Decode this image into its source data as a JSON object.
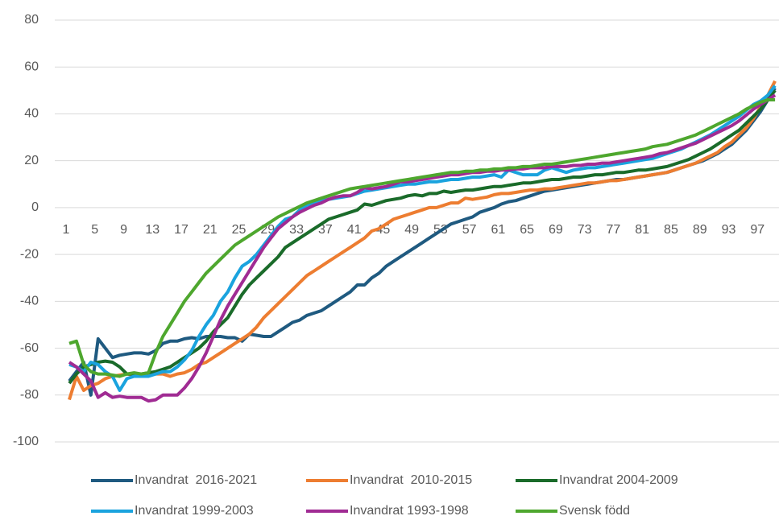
{
  "chart_data": {
    "type": "line",
    "categories": [
      "1",
      null,
      null,
      null,
      "5",
      null,
      null,
      null,
      "9",
      null,
      null,
      null,
      "13",
      null,
      null,
      null,
      "17",
      null,
      null,
      null,
      "21",
      null,
      null,
      null,
      "25",
      null,
      null,
      null,
      "29",
      null,
      null,
      null,
      "33",
      null,
      null,
      null,
      "37",
      null,
      null,
      null,
      "41",
      null,
      null,
      null,
      "45",
      null,
      null,
      null,
      "49",
      null,
      null,
      null,
      "53",
      null,
      null,
      null,
      "57",
      null,
      null,
      null,
      "61",
      null,
      null,
      null,
      "65",
      null,
      null,
      null,
      "69",
      null,
      null,
      null,
      "73",
      null,
      null,
      null,
      "77",
      null,
      null,
      null,
      "81",
      null,
      null,
      null,
      "85",
      null,
      null,
      null,
      "89",
      null,
      null,
      null,
      "93",
      null,
      null,
      null,
      "97",
      null,
      null
    ],
    "ylim": [
      -100,
      80
    ],
    "yticks": [
      -100,
      -80,
      -60,
      -40,
      -20,
      0,
      20,
      40,
      60,
      80
    ],
    "grid": true,
    "series": [
      {
        "name": "Invandrat  2016-2021",
        "color": "#1f5a80",
        "values": [
          -74,
          -70,
          -66,
          -80,
          -56,
          -60,
          -64,
          -63,
          -62.5,
          -62,
          -62,
          -62.5,
          -61,
          -58,
          -57,
          -57,
          -56,
          -55.5,
          -56,
          -55,
          -55,
          -55,
          -55.5,
          -55.5,
          -57,
          -54,
          -54.5,
          -55,
          -55,
          -53,
          -51,
          -49,
          -48,
          -46,
          -45,
          -44,
          -42,
          -40,
          -38,
          -36,
          -33,
          -33,
          -30,
          -28,
          -25,
          -23,
          -21,
          -19,
          -17,
          -15,
          -13,
          -11,
          -9,
          -7,
          -6,
          -5,
          -4,
          -2,
          -1,
          0,
          1.5,
          2.5,
          3,
          4,
          5,
          6,
          7,
          7.5,
          8,
          8.5,
          9,
          9.5,
          10,
          10.5,
          11,
          11.5,
          12,
          12,
          12.5,
          13,
          13.5,
          14,
          14.5,
          15,
          16,
          17,
          18,
          19,
          20,
          21.5,
          23,
          25,
          27,
          30,
          33,
          37,
          41,
          46,
          51
        ]
      },
      {
        "name": "Invandrat  2010-2015",
        "color": "#ed7d31",
        "values": [
          -82,
          -72,
          -78,
          -76,
          -75,
          -73,
          -72,
          -71.5,
          -71,
          -71.5,
          -71,
          -71.5,
          -71,
          -71,
          -72,
          -71,
          -70.5,
          -69,
          -67,
          -66,
          -64,
          -62,
          -60,
          -58,
          -56,
          -54,
          -51,
          -47,
          -44,
          -41,
          -38,
          -35,
          -32,
          -29,
          -27,
          -25,
          -23,
          -21,
          -19,
          -17,
          -15,
          -13,
          -10,
          -9,
          -7,
          -5,
          -4,
          -3,
          -2,
          -1,
          0,
          0,
          1,
          2,
          2,
          4,
          3.5,
          4,
          4.5,
          5.5,
          6,
          6,
          6.5,
          7,
          7.5,
          7.5,
          8,
          8,
          8.5,
          9,
          9.5,
          10,
          10.5,
          10.5,
          11,
          11.5,
          11.5,
          12,
          12.5,
          13,
          13.5,
          14,
          14.5,
          15,
          16,
          17,
          18,
          19,
          20.5,
          22,
          23.5,
          26,
          28,
          31,
          34,
          38,
          43,
          48,
          54
        ]
      },
      {
        "name": "Invandrat 2004-2009",
        "color": "#1a6b2a",
        "values": [
          -75,
          -71,
          -68,
          -67,
          -66,
          -65.5,
          -66,
          -68,
          -71,
          -71,
          -71,
          -70.5,
          -70,
          -69,
          -68,
          -66,
          -64,
          -62,
          -60,
          -57,
          -53,
          -50,
          -47,
          -42,
          -37,
          -33,
          -30,
          -27,
          -24,
          -21,
          -17,
          -15,
          -13,
          -11,
          -9,
          -7,
          -5,
          -4,
          -3,
          -2,
          -1,
          1.5,
          1,
          2,
          3,
          3.5,
          4,
          5,
          5.5,
          5,
          6,
          6,
          7,
          6.5,
          7,
          7.5,
          7.5,
          8,
          8.5,
          9,
          9,
          9.5,
          10,
          10.5,
          10.5,
          11,
          11.5,
          12,
          12,
          12.5,
          13,
          13,
          13.5,
          14,
          14,
          14.5,
          15,
          15,
          15.5,
          16,
          16,
          16.5,
          17,
          17.5,
          18.5,
          19.5,
          20.5,
          22,
          23.5,
          25,
          27,
          29,
          31,
          33,
          36,
          39,
          42,
          46,
          50
        ]
      },
      {
        "name": "Invandrat 1999-2003",
        "color": "#1aa3de",
        "values": [
          -67,
          -68,
          -70,
          -66,
          -67,
          -70,
          -72,
          -78,
          -73,
          -72,
          -72,
          -72,
          -71,
          -70,
          -70,
          -68,
          -65,
          -61,
          -55,
          -50,
          -46,
          -40,
          -36,
          -30,
          -25,
          -23,
          -20,
          -16,
          -12,
          -8,
          -5,
          -4,
          -1,
          1,
          2,
          3,
          3.5,
          4,
          4.5,
          5,
          6,
          7,
          7.5,
          8,
          8.5,
          9,
          9.5,
          10,
          10,
          10.5,
          11,
          11,
          11.5,
          12,
          12,
          12.5,
          13,
          13,
          13.5,
          14,
          13,
          16,
          15,
          14,
          14,
          14,
          16,
          17,
          16,
          15,
          16,
          16.5,
          17,
          17,
          17.5,
          18,
          18.5,
          19,
          19.5,
          20,
          20.5,
          21,
          22,
          23,
          24,
          25,
          26.5,
          28,
          29.5,
          31,
          33,
          35,
          37,
          39,
          41.5,
          44,
          45.5,
          48,
          52
        ]
      },
      {
        "name": "Invandrat 1993-1998",
        "color": "#a02b93",
        "values": [
          -66,
          -68,
          -71,
          -74,
          -81,
          -79,
          -81,
          -80.5,
          -81,
          -81,
          -81,
          -82.5,
          -82,
          -80,
          -80,
          -80,
          -77,
          -73,
          -68,
          -62,
          -55,
          -48,
          -42,
          -37,
          -32,
          -27,
          -22,
          -17,
          -13,
          -9,
          -6.5,
          -4,
          -2,
          -0.5,
          1,
          2,
          3.5,
          4.5,
          5,
          5,
          6.5,
          8.5,
          8,
          8.5,
          9,
          10,
          11,
          11,
          11.5,
          12,
          12.5,
          13,
          13.5,
          14,
          14,
          14.5,
          15,
          15,
          15.5,
          15.5,
          16,
          16,
          16.5,
          16.5,
          17,
          17,
          17,
          17.5,
          17.5,
          17.5,
          18,
          18,
          18.5,
          18.5,
          19,
          19,
          19.5,
          20,
          20.5,
          21,
          21.5,
          22,
          23,
          23.5,
          24.5,
          25.5,
          26.5,
          27.5,
          29,
          30.5,
          32,
          33.5,
          35,
          37,
          39.5,
          42,
          44,
          46,
          48
        ]
      },
      {
        "name": "Svensk född",
        "color": "#4ea72e",
        "values": [
          -58,
          -57,
          -67,
          -70,
          -71,
          -71,
          -71.5,
          -72,
          -71,
          -70.5,
          -71,
          -70.5,
          -62,
          -55,
          -50,
          -45,
          -40,
          -36,
          -32,
          -28,
          -25,
          -22,
          -19,
          -16,
          -14,
          -12,
          -10,
          -8,
          -6,
          -4,
          -2.5,
          -1,
          0.5,
          2,
          3,
          4,
          5,
          6,
          7,
          8,
          8.5,
          9,
          9.5,
          10,
          10.5,
          11,
          11.5,
          12,
          12.5,
          13,
          13.5,
          14,
          14.5,
          15,
          15,
          15.5,
          15.5,
          16,
          16,
          16.5,
          16.5,
          17,
          17,
          17.5,
          17.5,
          18,
          18.5,
          18.5,
          19,
          19.5,
          20,
          20.5,
          21,
          21.5,
          22,
          22.5,
          23,
          23.5,
          24,
          24.5,
          25,
          26,
          26.5,
          27,
          28,
          29,
          30,
          31,
          32.5,
          34,
          35.5,
          37,
          38.5,
          40,
          42,
          43.5,
          45,
          46,
          46
        ]
      }
    ]
  }
}
